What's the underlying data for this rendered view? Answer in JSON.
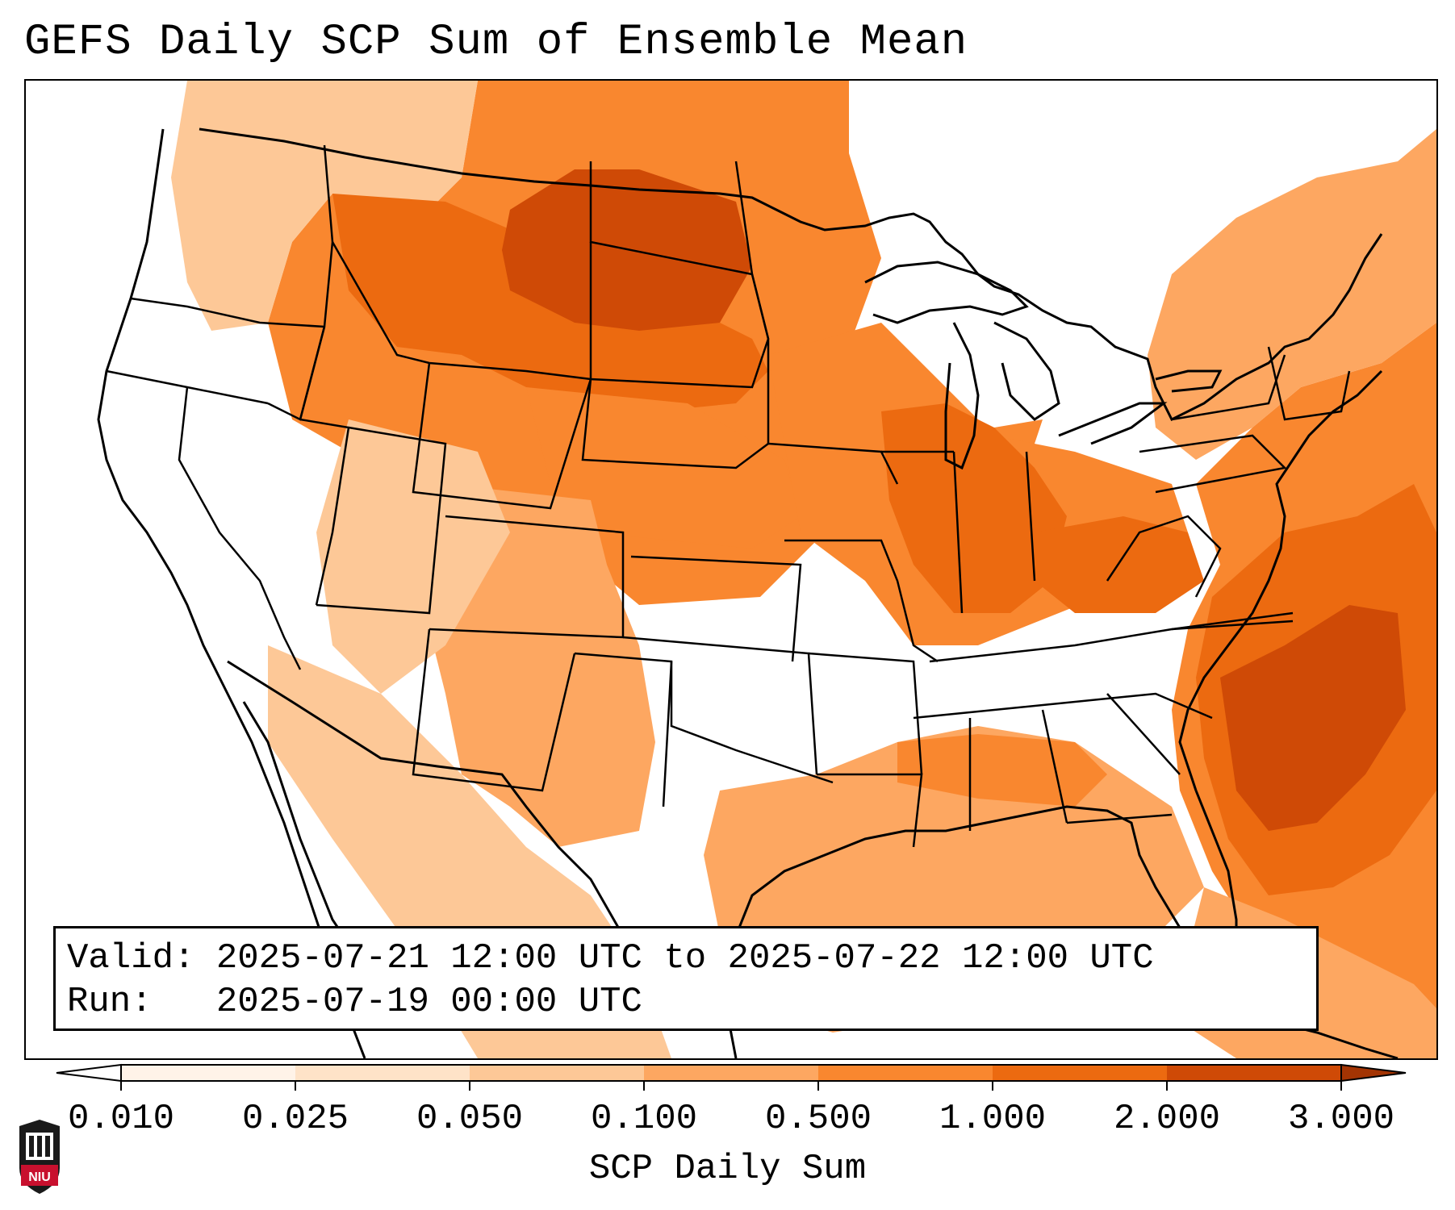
{
  "title": "GEFS Daily SCP Sum of Ensemble Mean",
  "info": {
    "valid": "Valid: 2025-07-21 12:00 UTC to 2025-07-22 12:00 UTC",
    "run": "Run:   2025-07-19 00:00 UTC"
  },
  "colorbar": {
    "title": "SCP Daily Sum",
    "levels": [
      "0.010",
      "0.025",
      "0.050",
      "0.100",
      "0.500",
      "1.000",
      "2.000",
      "3.000"
    ],
    "colors": [
      "#fff3e8",
      "#fee3c8",
      "#fdc897",
      "#fda761",
      "#f9872f",
      "#ec6a10",
      "#cf4a06"
    ],
    "under_color": "#ffffff",
    "over_color": "#a33403",
    "extend": "both"
  },
  "logo": {
    "text": "NIU",
    "color": "#c8102e"
  },
  "features": {
    "border_color": "#000000",
    "ocean_color": "#ffffff"
  }
}
